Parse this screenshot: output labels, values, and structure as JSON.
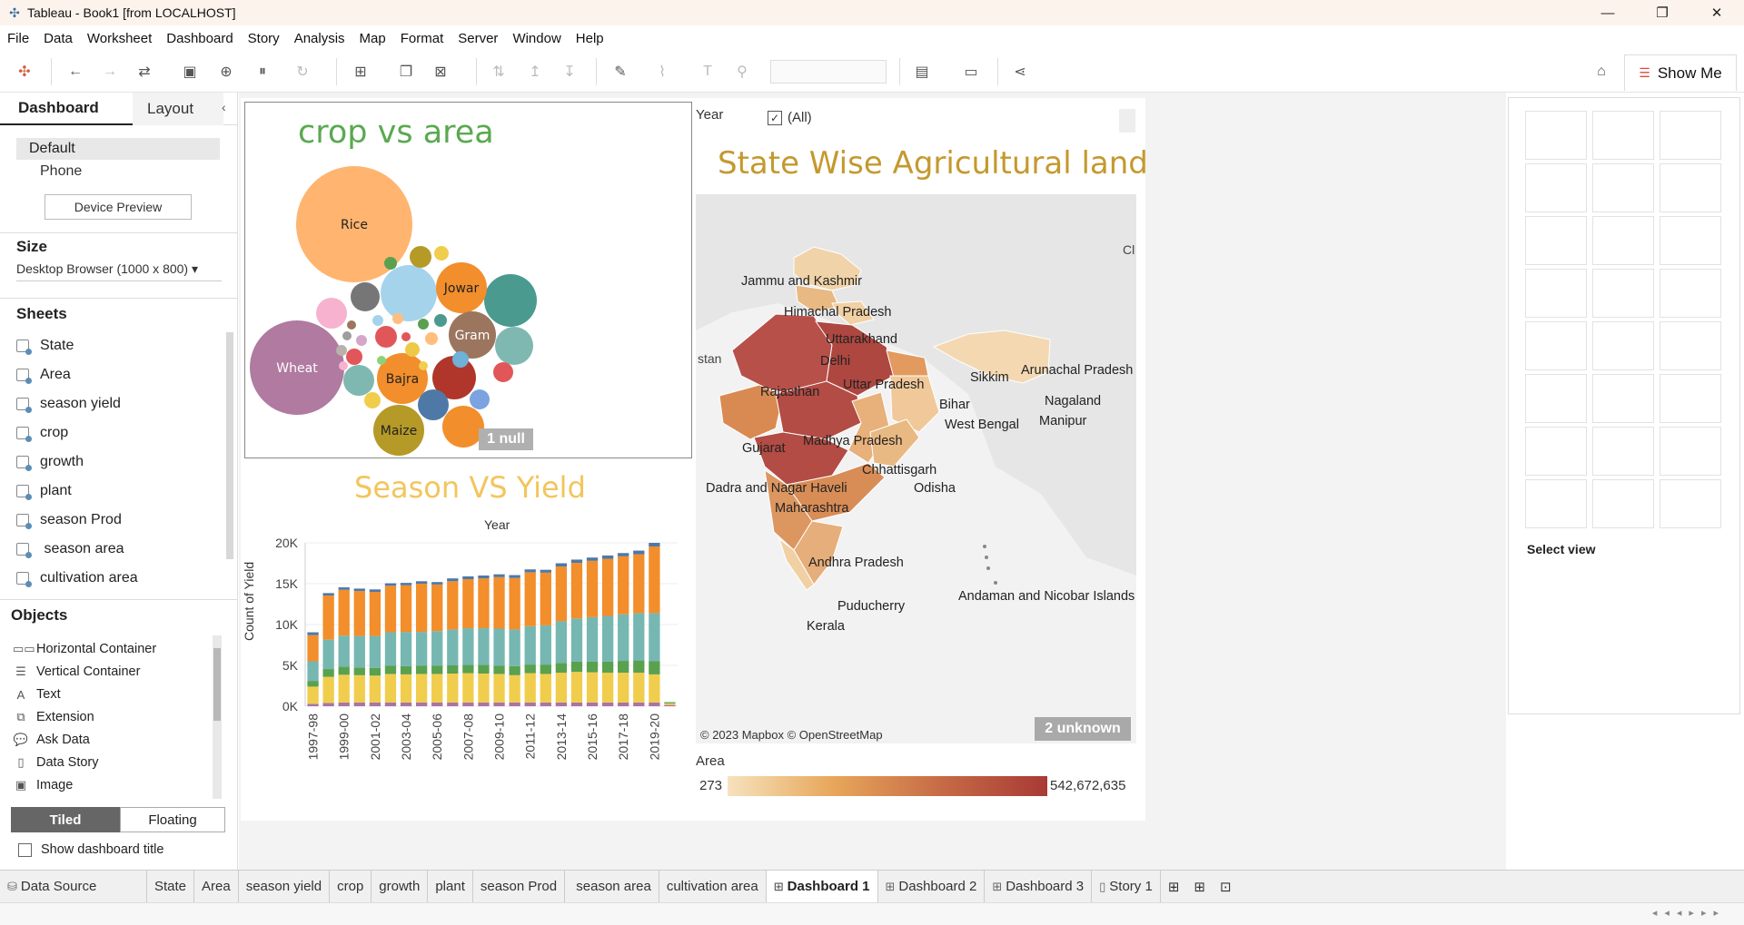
{
  "window": {
    "title": "Tableau - Book1 [from LOCALHOST]",
    "minimize": "—",
    "restore": "❐",
    "close": "✕"
  },
  "menu": [
    "File",
    "Data",
    "Worksheet",
    "Dashboard",
    "Story",
    "Analysis",
    "Map",
    "Format",
    "Server",
    "Window",
    "Help"
  ],
  "toolbar": {
    "show_me": "Show Me"
  },
  "left_panel": {
    "tabs": {
      "dashboard": "Dashboard",
      "layout": "Layout"
    },
    "device": {
      "default": "Default",
      "phone": "Phone",
      "preview_button": "Device Preview"
    },
    "size": {
      "heading": "Size",
      "value": "Desktop Browser (1000 x 800)",
      "arrow": "▾"
    },
    "sheets": {
      "heading": "Sheets",
      "items": [
        "State",
        "Area",
        "season yield",
        "crop",
        "growth",
        "plant",
        "season Prod",
        " season area",
        "cultivation area"
      ]
    },
    "objects": {
      "heading": "Objects",
      "items": [
        {
          "label": "Horizontal Container",
          "icon": "horizontal-container-icon",
          "glyph": "▭▭"
        },
        {
          "label": "Vertical Container",
          "icon": "vertical-container-icon",
          "glyph": "☰"
        },
        {
          "label": "Text",
          "icon": "text-icon",
          "glyph": "A"
        },
        {
          "label": "Extension",
          "icon": "extension-icon",
          "glyph": "⧉"
        },
        {
          "label": "Ask Data",
          "icon": "ask-data-icon",
          "glyph": "💬"
        },
        {
          "label": "Data Story",
          "icon": "data-story-icon",
          "glyph": "▯"
        },
        {
          "label": "Image",
          "icon": "image-icon",
          "glyph": "▣"
        }
      ]
    },
    "tiled": "Tiled",
    "floating": "Floating",
    "show_title": "Show dashboard title"
  },
  "crop_chart": {
    "title": "crop vs area",
    "null_badge": "1 null",
    "bubble_labels": {
      "rice": "Rice",
      "jowar": "Jowar",
      "gram": "Gram",
      "wheat": "Wheat",
      "bajra": "Bajra",
      "maize": "Maize"
    }
  },
  "chart_data": {
    "type": "bar",
    "title": "Season VS Yield",
    "xlabel": "Year",
    "ylabel": "Count of Yield",
    "ylim": [
      0,
      20000
    ],
    "yticks": [
      "0K",
      "5K",
      "10K",
      "15K",
      "20K"
    ],
    "categories": [
      "1997-98",
      "1998-99",
      "1999-00",
      "2000-01",
      "2001-02",
      "2002-03",
      "2003-04",
      "2004-05",
      "2005-06",
      "2006-07",
      "2007-08",
      "2008-09",
      "2009-10",
      "2010-11",
      "2011-12",
      "2012-13",
      "2013-14",
      "2014-15",
      "2015-16",
      "2016-17",
      "2017-18",
      "2018-19",
      "2019-20",
      "2020-21"
    ],
    "xtick_labels": [
      "1997-98",
      "1999-00",
      "2001-02",
      "2003-04",
      "2005-06",
      "2007-08",
      "2009-10",
      "2011-12",
      "2013-14",
      "2015-16",
      "2017-18",
      "2019-20"
    ],
    "series": [
      {
        "color": "#a974a6",
        "values": [
          300,
          400,
          450,
          450,
          450,
          450,
          450,
          450,
          450,
          450,
          450,
          450,
          450,
          450,
          450,
          450,
          450,
          450,
          450,
          450,
          450,
          450,
          450,
          150
        ]
      },
      {
        "color": "#f1cd4d",
        "values": [
          2100,
          3200,
          3400,
          3350,
          3300,
          3500,
          3450,
          3500,
          3500,
          3550,
          3600,
          3550,
          3500,
          3350,
          3600,
          3500,
          3650,
          3750,
          3700,
          3650,
          3650,
          3650,
          3450,
          200
        ]
      },
      {
        "color": "#59a14f",
        "values": [
          700,
          950,
          1000,
          950,
          950,
          1000,
          1000,
          1000,
          1000,
          1000,
          1000,
          1050,
          1000,
          1100,
          1050,
          1150,
          1200,
          1250,
          1300,
          1350,
          1450,
          1500,
          1600,
          150
        ]
      },
      {
        "color": "#76b7b2",
        "values": [
          2400,
          3600,
          3800,
          3850,
          3900,
          4100,
          4200,
          4150,
          4250,
          4400,
          4500,
          4500,
          4550,
          4500,
          4700,
          4800,
          5100,
          5300,
          5450,
          5600,
          5700,
          5800,
          5900,
          0
        ]
      },
      {
        "color": "#f28e2b",
        "values": [
          3200,
          5400,
          5600,
          5500,
          5400,
          5700,
          5700,
          5900,
          5700,
          5900,
          6000,
          6100,
          6300,
          6300,
          6600,
          6450,
          6700,
          6800,
          6900,
          7000,
          7100,
          7200,
          8150,
          0
        ]
      },
      {
        "color": "#4e79a7",
        "values": [
          350,
          300,
          300,
          300,
          300,
          300,
          300,
          300,
          300,
          350,
          350,
          350,
          350,
          350,
          350,
          350,
          400,
          400,
          400,
          400,
          400,
          450,
          450,
          0
        ]
      }
    ]
  },
  "map": {
    "filter_label": "Year",
    "filter_all": "(All)",
    "filter_check": "✓",
    "title": "State Wise Agricultural land",
    "credit": "© 2023 Mapbox © OpenStreetMap",
    "unknown_badge": "2 unknown",
    "edge_left": "stan",
    "edge_right": "Cl",
    "state_labels": {
      "jk": "Jammu and Kashmir",
      "hp": "Himachal Pradesh",
      "uk": "Uttarakhand",
      "dl": "Delhi",
      "rj": "Rajasthan",
      "up": "Uttar Pradesh",
      "sk": "Sikkim",
      "ar": "Arunachal Pradesh",
      "nl": "Nagaland",
      "mn": "Manipur",
      "br": "Bihar",
      "wb": "West Bengal",
      "gj": "Gujarat",
      "mp": "Madhya Pradesh",
      "cg": "Chhattisgarh",
      "od": "Odisha",
      "dn": "Dadra and Nagar Haveli",
      "mh": "Maharashtra",
      "ap": "Andhra Pradesh",
      "py": "Puducherry",
      "kl": "Kerala",
      "an": "Andaman and Nicobar Islands"
    },
    "legend": {
      "title": "Area",
      "min": "273",
      "max": "542,672,635"
    }
  },
  "show_me": {
    "select_view": "Select view"
  },
  "bottom_tabs": [
    {
      "label": "Data Source",
      "icon": "data-source-icon",
      "glyph": "⛁"
    },
    {
      "label": "State"
    },
    {
      "label": "Area"
    },
    {
      "label": "season yield"
    },
    {
      "label": "crop"
    },
    {
      "label": "growth"
    },
    {
      "label": "plant"
    },
    {
      "label": "season Prod"
    },
    {
      "label": " season area"
    },
    {
      "label": "cultivation area"
    },
    {
      "label": "Dashboard 1",
      "icon": "dashboard-icon",
      "glyph": "⊞",
      "active": true
    },
    {
      "label": "Dashboard 2",
      "icon": "dashboard-icon",
      "glyph": "⊞"
    },
    {
      "label": "Dashboard 3",
      "icon": "dashboard-icon",
      "glyph": "⊞"
    },
    {
      "label": "Story 1",
      "icon": "story-icon",
      "glyph": "▯"
    }
  ],
  "colors": {
    "accent": "#e0483b",
    "crop_title": "#5aa950",
    "season_title": "#f3c55c",
    "map_title": "#c4992e"
  }
}
